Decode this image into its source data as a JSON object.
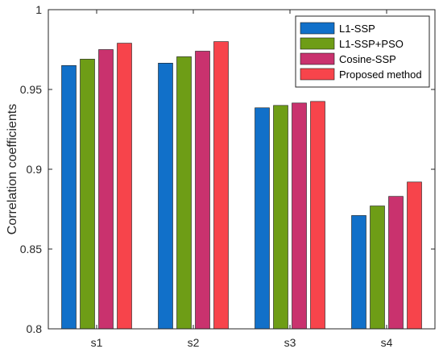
{
  "chart_data": {
    "type": "bar",
    "title": "",
    "xlabel": "",
    "ylabel": "Correlation coefficients",
    "ylim": [
      0.8,
      1.0
    ],
    "yticks": [
      "0.8",
      "0.85",
      "0.9",
      "0.95",
      "1"
    ],
    "categories": [
      "s1",
      "s2",
      "s3",
      "s4"
    ],
    "series": [
      {
        "name": "L1-SSP",
        "color": "#1170c9",
        "values": [
          0.965,
          0.9665,
          0.9385,
          0.871
        ]
      },
      {
        "name": "L1-SSP+PSO",
        "color": "#6e9d16",
        "values": [
          0.969,
          0.9705,
          0.94,
          0.877
        ]
      },
      {
        "name": "Cosine-SSP",
        "color": "#c9326e",
        "values": [
          0.975,
          0.974,
          0.9415,
          0.883
        ]
      },
      {
        "name": "Proposed method",
        "color": "#f7444b",
        "values": [
          0.979,
          0.98,
          0.9425,
          0.892
        ]
      }
    ],
    "grid": false,
    "legend_position": "top-right"
  }
}
